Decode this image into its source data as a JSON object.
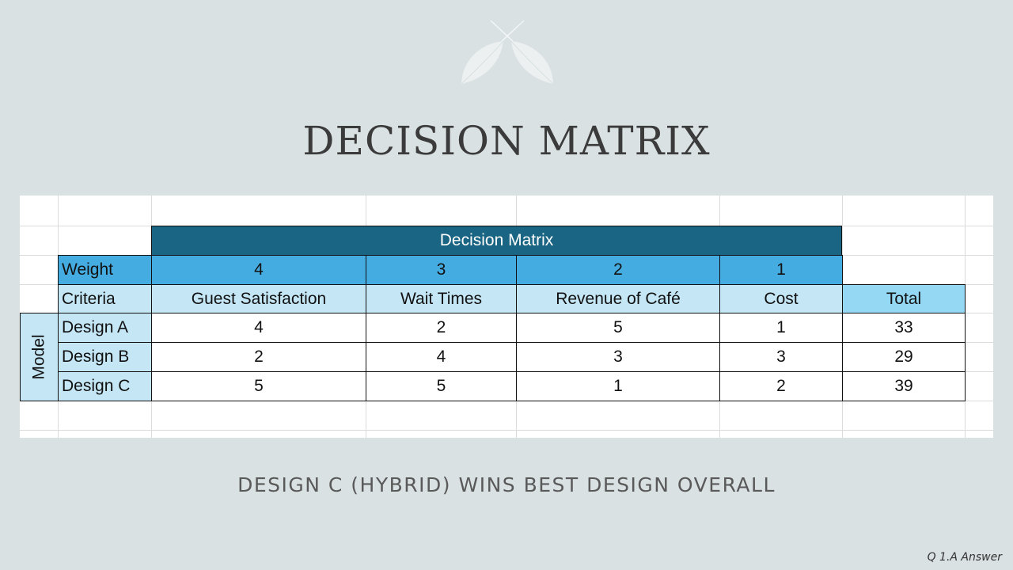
{
  "slide": {
    "title": "DECISION MATRIX",
    "subtitle": "DESIGN C (HYBRID) WINS BEST DESIGN OVERALL",
    "footnote": "Q 1.A Answer"
  },
  "matrix": {
    "title": "Decision Matrix",
    "weight_label": "Weight",
    "criteria_label": "Criteria",
    "model_label": "Model",
    "total_label": "Total",
    "weights": [
      "4",
      "3",
      "2",
      "1"
    ],
    "criteria": [
      "Guest Satisfaction",
      "Wait Times",
      "Revenue of Café",
      "Cost"
    ],
    "designs": [
      {
        "name": "Design A",
        "scores": [
          "4",
          "2",
          "5",
          "1"
        ],
        "total": "33"
      },
      {
        "name": "Design B",
        "scores": [
          "2",
          "4",
          "3",
          "3"
        ],
        "total": "29"
      },
      {
        "name": "Design C",
        "scores": [
          "5",
          "5",
          "1",
          "2"
        ],
        "total": "39"
      }
    ]
  },
  "colors": {
    "background": "#d9e1e3",
    "header_dark": "#1a6584",
    "weight_row": "#45ace1",
    "criteria_row": "#c4e6f5",
    "total_header": "#94d8f4"
  }
}
